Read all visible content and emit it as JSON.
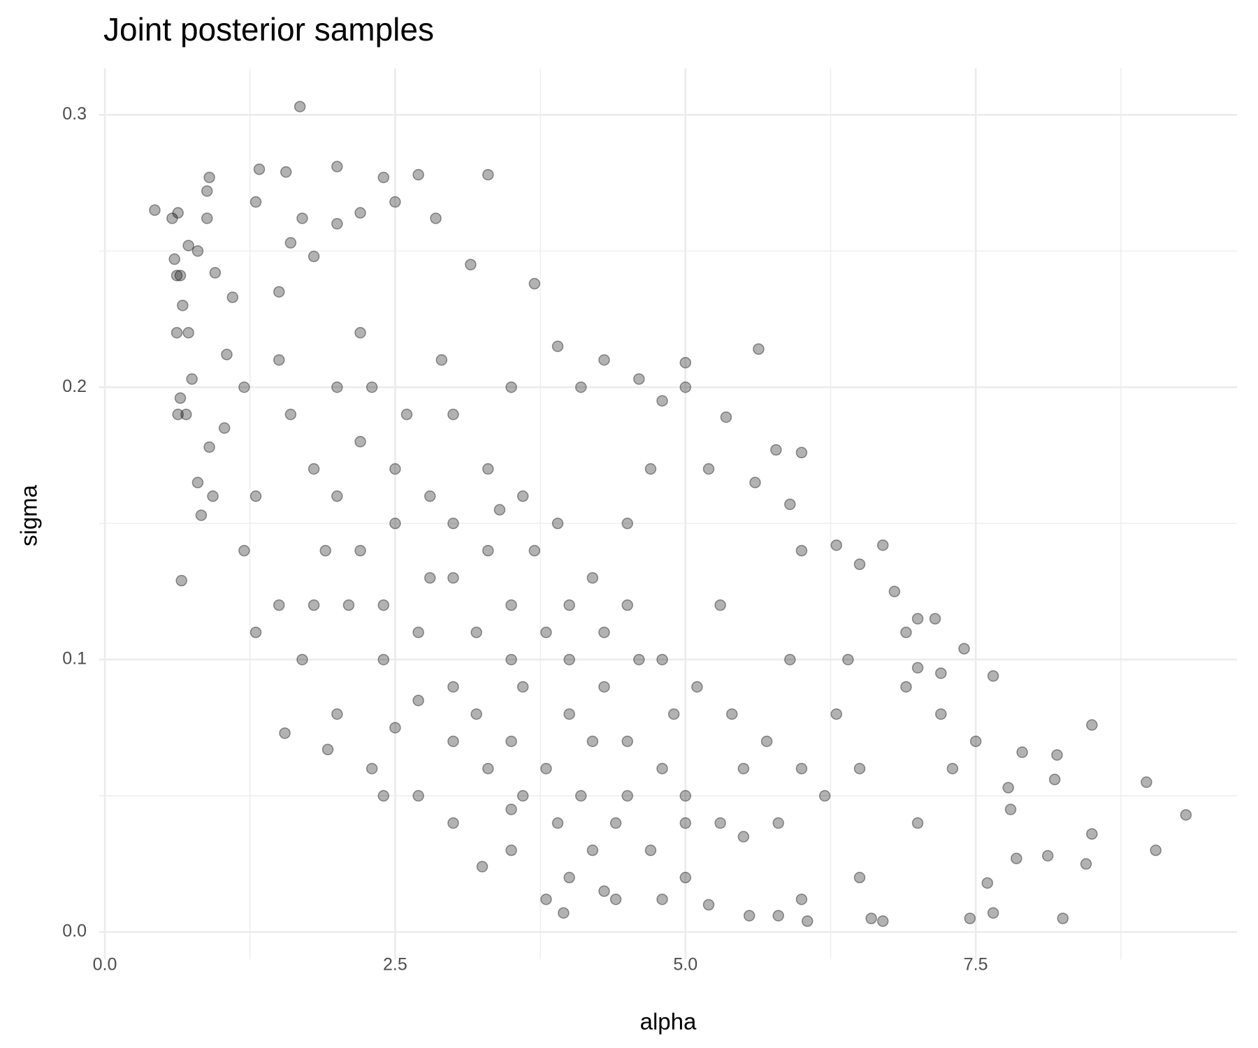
{
  "chart_data": {
    "type": "scatter",
    "title": "Joint posterior samples",
    "x_label": "alpha",
    "y_label": "sigma",
    "xlim": [
      -0.05,
      9.75
    ],
    "ylim": [
      -0.01,
      0.317
    ],
    "xticks": [
      {
        "value": 0,
        "label": "0.0"
      },
      2.5,
      {
        "value": 5,
        "label": "5.0"
      },
      7.5
    ],
    "yticks": [
      {
        "value": 0,
        "label": "0.0"
      },
      0.1,
      0.2,
      0.3
    ],
    "x_minor_grid": [
      1.25,
      3.75,
      6.25,
      8.75
    ],
    "y_minor_grid": [
      0.05,
      0.15,
      0.25
    ],
    "grid": true,
    "color": "#000000",
    "opacity": 0.3,
    "x": [
      1.68,
      0.43,
      0.58,
      0.63,
      0.62,
      0.65,
      0.6,
      0.72,
      0.8,
      0.9,
      0.88,
      0.88,
      0.67,
      0.62,
      0.72,
      0.75,
      0.65,
      0.63,
      0.7,
      0.66,
      0.8,
      0.83,
      0.9,
      0.93,
      0.95,
      1.1,
      1.3,
      1.33,
      1.56,
      1.6,
      1.7,
      2.0,
      2.4,
      2.5,
      2.7,
      2.85,
      3.3,
      2.0,
      2.2,
      5.63,
      5.0,
      5.0,
      4.3,
      5.35,
      5.78,
      6.0,
      5.9,
      6.3,
      6.7,
      7.15,
      7.4,
      7.2,
      7.65,
      7.0,
      6.9,
      7.9,
      8.2,
      8.5,
      8.18,
      8.97,
      9.31,
      9.05,
      8.5,
      8.45,
      8.25,
      8.12,
      7.85,
      7.6,
      7.65,
      7.45,
      7.8,
      7.78,
      6.7,
      6.6,
      6.05,
      5.8,
      5.55,
      4.4,
      3.95,
      3.8,
      3.25,
      2.4,
      1.55,
      1.92,
      1.3,
      1.2,
      1.03,
      1.05,
      1.5,
      1.8,
      3.15,
      3.7,
      3.9,
      4.1,
      4.6,
      4.8,
      5.2,
      5.6,
      6.0,
      6.5,
      6.8,
      7.0,
      6.9,
      7.2,
      7.5,
      7.3,
      7.0,
      6.5,
      6.0,
      5.2,
      4.8,
      4.0,
      3.5,
      3.0,
      2.7,
      2.3,
      2.0,
      1.7,
      1.5,
      1.3,
      1.2,
      1.5,
      2.0,
      2.2,
      2.5,
      2.5,
      2.8,
      3.0,
      3.0,
      3.3,
      3.5,
      3.5,
      3.8,
      4.0,
      4.0,
      4.3,
      4.5,
      4.5,
      4.8,
      5.0,
      5.0,
      5.3,
      5.5,
      2.2,
      2.4,
      2.7,
      3.0,
      3.2,
      3.5,
      3.8,
      4.1,
      4.4,
      4.7,
      2.0,
      1.8,
      1.9,
      2.1,
      2.4,
      2.7,
      3.0,
      3.3,
      3.6,
      3.9,
      4.2,
      3.0,
      3.3,
      3.6,
      3.9,
      4.2,
      4.5,
      4.8,
      5.1,
      5.4,
      5.7,
      6.0,
      6.2,
      5.8,
      5.5,
      4.9,
      4.6,
      4.3,
      4.0,
      3.7,
      3.4,
      2.6,
      2.3,
      2.8,
      3.2,
      3.6,
      4.2,
      2.2,
      3.5,
      4.5,
      5.3,
      6.3,
      6.5,
      5.0,
      4.3,
      3.5,
      2.5,
      1.8,
      1.6,
      2.9,
      4.7,
      5.9,
      6.4
    ],
    "values": [
      0.303,
      0.265,
      0.262,
      0.264,
      0.241,
      0.241,
      0.247,
      0.252,
      0.25,
      0.277,
      0.272,
      0.262,
      0.23,
      0.22,
      0.22,
      0.203,
      0.196,
      0.19,
      0.19,
      0.129,
      0.165,
      0.153,
      0.178,
      0.16,
      0.242,
      0.233,
      0.268,
      0.28,
      0.279,
      0.253,
      0.262,
      0.281,
      0.277,
      0.268,
      0.278,
      0.262,
      0.278,
      0.26,
      0.264,
      0.214,
      0.209,
      0.2,
      0.21,
      0.189,
      0.177,
      0.176,
      0.157,
      0.142,
      0.142,
      0.115,
      0.104,
      0.095,
      0.094,
      0.097,
      0.11,
      0.066,
      0.065,
      0.076,
      0.056,
      0.055,
      0.043,
      0.03,
      0.036,
      0.025,
      0.005,
      0.028,
      0.027,
      0.018,
      0.007,
      0.005,
      0.045,
      0.053,
      0.004,
      0.005,
      0.004,
      0.006,
      0.006,
      0.012,
      0.007,
      0.012,
      0.024,
      0.05,
      0.073,
      0.067,
      0.11,
      0.14,
      0.185,
      0.212,
      0.235,
      0.248,
      0.245,
      0.238,
      0.215,
      0.2,
      0.203,
      0.195,
      0.17,
      0.165,
      0.14,
      0.135,
      0.125,
      0.115,
      0.09,
      0.08,
      0.07,
      0.06,
      0.04,
      0.02,
      0.012,
      0.01,
      0.012,
      0.02,
      0.03,
      0.04,
      0.05,
      0.06,
      0.08,
      0.1,
      0.12,
      0.16,
      0.2,
      0.21,
      0.2,
      0.18,
      0.17,
      0.15,
      0.16,
      0.15,
      0.13,
      0.14,
      0.12,
      0.1,
      0.11,
      0.1,
      0.08,
      0.09,
      0.07,
      0.05,
      0.06,
      0.05,
      0.04,
      0.04,
      0.035,
      0.14,
      0.12,
      0.11,
      0.09,
      0.08,
      0.07,
      0.06,
      0.05,
      0.04,
      0.03,
      0.16,
      0.17,
      0.14,
      0.12,
      0.1,
      0.085,
      0.07,
      0.06,
      0.05,
      0.04,
      0.03,
      0.19,
      0.17,
      0.16,
      0.15,
      0.13,
      0.12,
      0.1,
      0.09,
      0.08,
      0.07,
      0.06,
      0.05,
      0.04,
      0.06,
      0.08,
      0.1,
      0.11,
      0.12,
      0.14,
      0.155,
      0.19,
      0.2,
      0.13,
      0.11,
      0.09,
      0.07,
      0.22,
      0.2,
      0.15,
      0.12,
      0.08,
      0.06,
      0.02,
      0.015,
      0.045,
      0.075,
      0.12,
      0.19,
      0.21,
      0.17,
      0.1,
      0.1
    ]
  }
}
